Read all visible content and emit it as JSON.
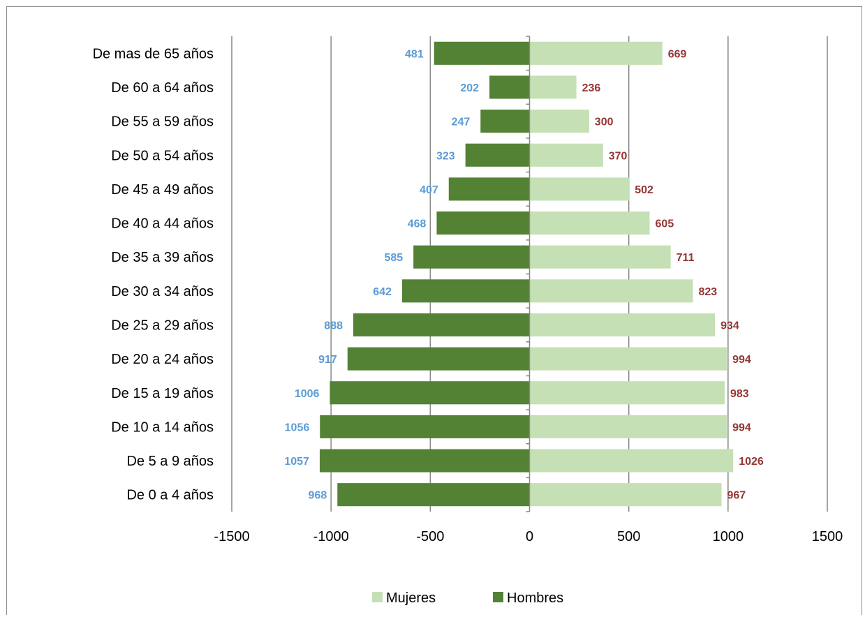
{
  "chart_data": {
    "type": "bar",
    "orientation": "horizontal",
    "categories": [
      "De 0 a 4 años",
      "De 5 a 9 años",
      "De 10 a 14 años",
      "De 15 a 19 años",
      "De 20 a 24 años",
      "De 25 a 29 años",
      "De 30 a 34 años",
      "De 35 a 39 años",
      "De 40 a 44 años",
      "De 45 a 49 años",
      "De 50 a 54 años",
      "De 55 a 59 años",
      "De 60 a 64 años",
      "De mas de 65 años"
    ],
    "series": [
      {
        "name": "Mujeres",
        "values": [
          967,
          1026,
          994,
          983,
          994,
          934,
          823,
          711,
          605,
          502,
          370,
          300,
          236,
          669
        ],
        "labels": [
          "967",
          "1026",
          "994",
          "983",
          "994",
          "934",
          "823",
          "711",
          "605",
          "502",
          "370",
          "300",
          "236",
          "669"
        ],
        "color": "#c5e0b4",
        "label_color": "#943634"
      },
      {
        "name": "Hombres",
        "values": [
          -968,
          -1057,
          -1056,
          -1006,
          -917,
          -888,
          -642,
          -585,
          -468,
          -407,
          -323,
          -247,
          -202,
          -481
        ],
        "labels": [
          "968",
          "1057",
          "1056",
          "1006",
          "917",
          "888",
          "642",
          "585",
          "468",
          "407",
          "323",
          "247",
          "202",
          "481"
        ],
        "color": "#548235",
        "label_color": "#5b9bd5"
      }
    ],
    "xlim": [
      -1500,
      1500
    ],
    "xticks": [
      "-1500",
      "-1000",
      "-500",
      "0",
      "500",
      "1000",
      "1500"
    ],
    "xtick_values": [
      -1500,
      -1000,
      -500,
      0,
      500,
      1000,
      1500
    ],
    "grid": "vertical",
    "legend_position": "bottom",
    "title": "",
    "xlabel": "",
    "ylabel": ""
  }
}
